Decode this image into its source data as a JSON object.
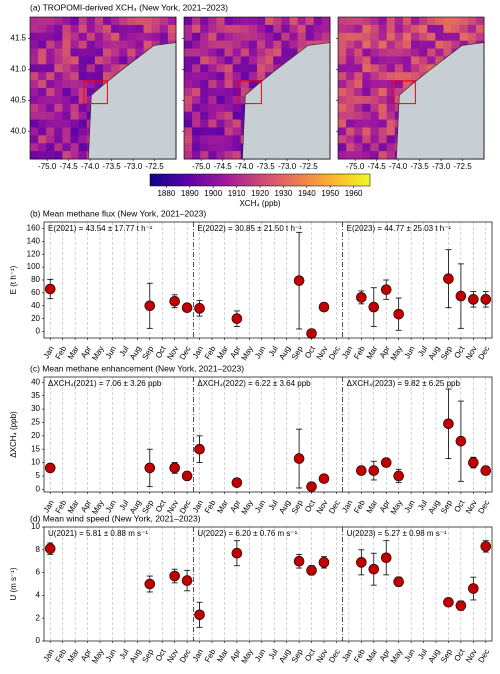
{
  "chart_data": [
    {
      "type": "map",
      "title": "(a) TROPOMI-derived XCH₄ (New York, 2021–2023)",
      "xlim": [
        -75.4,
        -72.0
      ],
      "ylim": [
        39.55,
        41.85
      ],
      "xticks": [
        {
          "value": -75.0,
          "label": "-75.0"
        },
        -74.5,
        {
          "value": -74.0,
          "label": "-74.0"
        },
        -73.5,
        {
          "value": -73.0,
          "label": "-73.0"
        },
        -72.5
      ],
      "yticks": [
        {
          "value": 40.0,
          "label": "40.0"
        },
        40.5,
        {
          "value": 41.0,
          "label": "41.0"
        },
        41.5
      ],
      "clim": [
        1873,
        1967
      ],
      "cticks": [
        1880,
        1890,
        1900,
        1910,
        1920,
        1930,
        1940,
        1950,
        1960
      ],
      "colorbar_label": "XCH₄ (ppb)"
    },
    {
      "type": "errorbar",
      "title": "(b) Mean methane flux (New York, 2021–2023)",
      "y_label": "E (t h⁻¹)",
      "annotations": [
        "E(2021) = 43.54 ± 17.77 t h⁻¹",
        "E(2022) = 30.85 ± 21.50 t h⁻¹",
        "E(2023) = 44.77 ± 25.03 t h⁻¹"
      ],
      "categories": [
        "Jan",
        "Feb",
        "Mar",
        "Apr",
        "May",
        "Jun",
        "Jul",
        "Aug",
        "Sep",
        "Oct",
        "Nov",
        "Dec",
        "Jan",
        "Feb",
        "Mar",
        "Apr",
        "May",
        "Jun",
        "Jul",
        "Aug",
        "Sep",
        "Oct",
        "Nov",
        "Dec",
        "Jan",
        "Feb",
        "Mar",
        "Apr",
        "May",
        "Jun",
        "Jul",
        "Aug",
        "Sep",
        "Oct",
        "Nov",
        "Dec"
      ],
      "values": [
        66,
        null,
        null,
        null,
        null,
        null,
        null,
        null,
        40,
        null,
        47,
        37,
        36,
        null,
        null,
        20,
        null,
        null,
        null,
        null,
        79,
        -3,
        38,
        null,
        null,
        53,
        38,
        65,
        27,
        null,
        null,
        null,
        82,
        55,
        50,
        50
      ],
      "errors": [
        15,
        null,
        null,
        null,
        null,
        null,
        null,
        null,
        35,
        null,
        10,
        5,
        12,
        null,
        null,
        12,
        null,
        null,
        null,
        null,
        75,
        5,
        5,
        null,
        null,
        10,
        30,
        15,
        25,
        null,
        null,
        null,
        45,
        50,
        12,
        12
      ],
      "color": "#c00000",
      "ylim": [
        -10,
        170
      ],
      "yticks": [
        0,
        20,
        40,
        60,
        80,
        100,
        120,
        140,
        160
      ]
    },
    {
      "type": "errorbar",
      "title": "(c) Mean methane enhancement (New York, 2021–2023)",
      "y_label": "ΔXCH₄ (ppb)",
      "annotations": [
        "ΔXCH₄(2021) = 7.06 ± 3.26 ppb",
        "ΔXCH₄(2022) = 6.22 ± 3.64 ppb",
        "ΔXCH₄(2023) = 9.82 ± 6.25 ppb"
      ],
      "categories": [
        "Jan",
        "Feb",
        "Mar",
        "Apr",
        "May",
        "Jun",
        "Jul",
        "Aug",
        "Sep",
        "Oct",
        "Nov",
        "Dec",
        "Jan",
        "Feb",
        "Mar",
        "Apr",
        "May",
        "Jun",
        "Jul",
        "Aug",
        "Sep",
        "Oct",
        "Nov",
        "Dec",
        "Jan",
        "Feb",
        "Mar",
        "Apr",
        "May",
        "Jun",
        "Jul",
        "Aug",
        "Sep",
        "Oct",
        "Nov",
        "Dec"
      ],
      "values": [
        8,
        null,
        null,
        null,
        null,
        null,
        null,
        null,
        8,
        null,
        8,
        5,
        15,
        null,
        null,
        2.5,
        null,
        null,
        null,
        null,
        11.5,
        1,
        4,
        null,
        null,
        7,
        7,
        10,
        5,
        null,
        null,
        null,
        24.5,
        18,
        10,
        7
      ],
      "errors": [
        1.5,
        null,
        null,
        null,
        null,
        null,
        null,
        null,
        7,
        null,
        2,
        1.5,
        5,
        null,
        null,
        1.5,
        null,
        null,
        null,
        null,
        11,
        1.5,
        1,
        null,
        null,
        1.5,
        3.5,
        1.5,
        2.5,
        null,
        null,
        null,
        13,
        15,
        2,
        1.5
      ],
      "color": "#c00000",
      "ylim": [
        -1,
        42
      ],
      "yticks": [
        0,
        5,
        10,
        15,
        20,
        25,
        30,
        35,
        40
      ]
    },
    {
      "type": "errorbar",
      "title": "(d) Mean wind speed (New York, 2021–2023)",
      "y_label": "U (m s⁻¹)",
      "annotations": [
        "U(2021) = 5.81 ± 0.88 m s⁻¹",
        "U(2022) = 6.20 ± 0.76 m s⁻¹",
        "U(2023) = 5.27 ± 0.98 m s⁻¹"
      ],
      "categories": [
        "Jan",
        "Feb",
        "Mar",
        "Apr",
        "May",
        "Jun",
        "Jul",
        "Aug",
        "Sep",
        "Oct",
        "Nov",
        "Dec",
        "Jan",
        "Feb",
        "Mar",
        "Apr",
        "May",
        "Jun",
        "Jul",
        "Aug",
        "Sep",
        "Oct",
        "Nov",
        "Dec",
        "Jan",
        "Feb",
        "Mar",
        "Apr",
        "May",
        "Jun",
        "Jul",
        "Aug",
        "Sep",
        "Oct",
        "Nov",
        "Dec"
      ],
      "values": [
        8.1,
        null,
        null,
        null,
        null,
        null,
        null,
        null,
        5,
        null,
        5.7,
        5.3,
        2.3,
        null,
        null,
        7.7,
        null,
        null,
        null,
        null,
        7.0,
        6.2,
        6.9,
        null,
        null,
        6.9,
        6.3,
        7.3,
        5.2,
        null,
        null,
        null,
        3.4,
        3.1,
        4.6,
        8.3
      ],
      "errors": [
        0.5,
        null,
        null,
        null,
        null,
        null,
        null,
        null,
        0.7,
        null,
        0.6,
        0.9,
        1.1,
        null,
        null,
        1.1,
        null,
        null,
        null,
        null,
        0.6,
        0.4,
        0.5,
        null,
        null,
        1.1,
        1.4,
        1.5,
        0.4,
        null,
        null,
        null,
        0.3,
        0.4,
        1.0,
        0.5
      ],
      "color": "#c00000",
      "ylim": [
        0,
        10
      ],
      "yticks": [
        0,
        2,
        4,
        6,
        8,
        10
      ]
    }
  ]
}
